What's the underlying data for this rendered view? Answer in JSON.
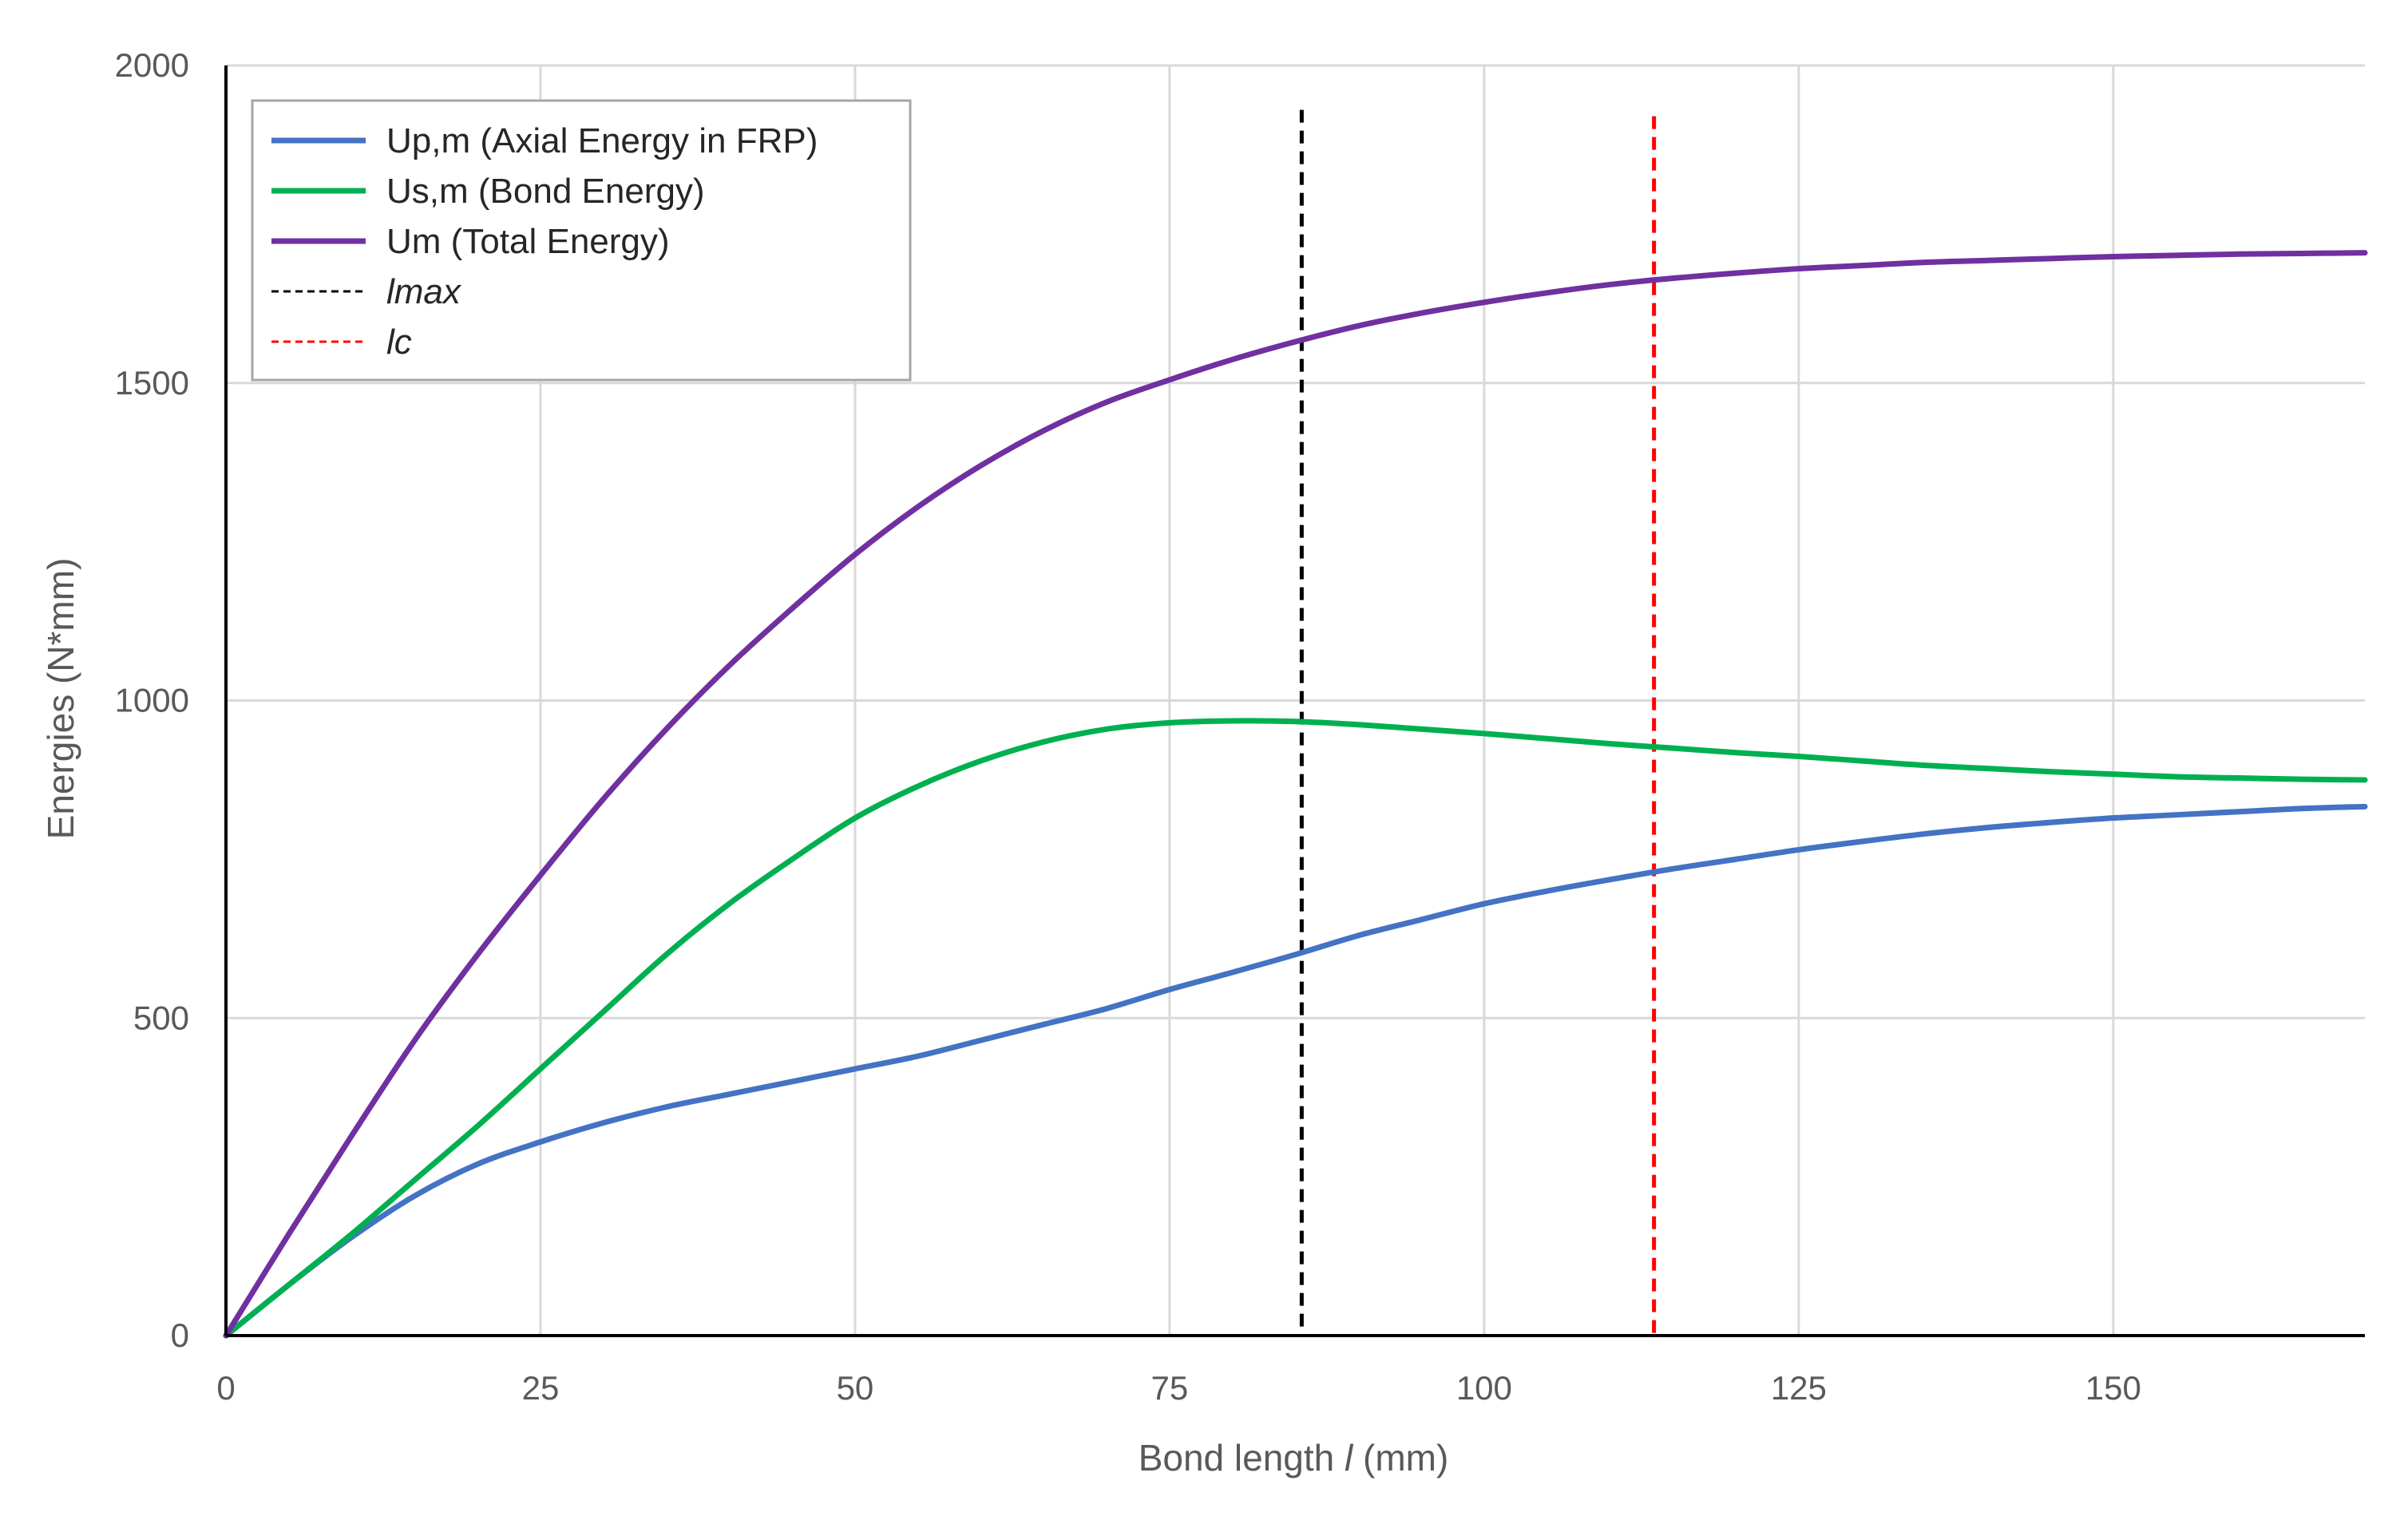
{
  "chart_data": {
    "type": "line",
    "xlabel_prefix": "Bond  length ",
    "xlabel_var": "l",
    "xlabel_unit": " (mm)",
    "ylabel": "Energies (N*mm)",
    "xlim": [
      0,
      170
    ],
    "ylim": [
      0,
      2000
    ],
    "x_ticks": [
      0,
      25,
      50,
      75,
      100,
      125,
      150
    ],
    "y_ticks": [
      0,
      500,
      1000,
      1500,
      2000
    ],
    "grid": true,
    "legend_position": "top-left",
    "series": [
      {
        "name": "Up,m (Axial Energy in FRP)",
        "color": "#4472C4",
        "x": [
          0,
          5,
          10,
          15,
          20,
          25,
          30,
          35,
          40,
          45,
          50,
          55,
          60,
          65,
          70,
          75,
          80,
          85,
          90,
          95,
          100,
          105,
          110,
          115,
          120,
          125,
          130,
          135,
          140,
          145,
          150,
          155,
          160,
          165,
          170
        ],
        "y": [
          0,
          80,
          155,
          220,
          270,
          305,
          335,
          360,
          380,
          400,
          420,
          440,
          465,
          490,
          515,
          545,
          572,
          600,
          630,
          655,
          680,
          700,
          718,
          735,
          750,
          765,
          778,
          790,
          800,
          808,
          815,
          820,
          825,
          830,
          833
        ]
      },
      {
        "name": "Us,m (Bond Energy)",
        "color": "#00B050",
        "x": [
          0,
          5,
          10,
          15,
          20,
          25,
          30,
          35,
          40,
          45,
          50,
          55,
          60,
          65,
          70,
          75,
          80,
          85,
          90,
          95,
          100,
          105,
          110,
          115,
          120,
          125,
          130,
          135,
          140,
          145,
          150,
          155,
          160,
          165,
          170
        ],
        "y": [
          0,
          80,
          160,
          245,
          330,
          420,
          510,
          600,
          680,
          750,
          815,
          865,
          905,
          935,
          955,
          965,
          968,
          967,
          962,
          955,
          948,
          940,
          932,
          925,
          918,
          912,
          905,
          898,
          893,
          888,
          884,
          880,
          878,
          876,
          875
        ]
      },
      {
        "name": "Um (Total Energy)",
        "color": "#7030A0",
        "x": [
          0,
          5,
          10,
          15,
          20,
          25,
          30,
          35,
          40,
          45,
          50,
          55,
          60,
          65,
          70,
          75,
          80,
          85,
          90,
          95,
          100,
          105,
          110,
          115,
          120,
          125,
          130,
          135,
          140,
          145,
          150,
          155,
          160,
          165,
          170
        ],
        "y": [
          0,
          160,
          315,
          465,
          600,
          725,
          845,
          955,
          1055,
          1145,
          1230,
          1305,
          1370,
          1425,
          1470,
          1505,
          1537,
          1565,
          1590,
          1610,
          1627,
          1642,
          1655,
          1665,
          1673,
          1680,
          1685,
          1690,
          1693,
          1696,
          1699,
          1701,
          1703,
          1704,
          1705
        ]
      }
    ],
    "vertical_lines": [
      {
        "name": "lmax",
        "x": 85.5,
        "y_top": 1930,
        "color": "#000000"
      },
      {
        "name": "lc",
        "x": 113.5,
        "y_top": 1920,
        "color": "#FF0000"
      }
    ]
  }
}
